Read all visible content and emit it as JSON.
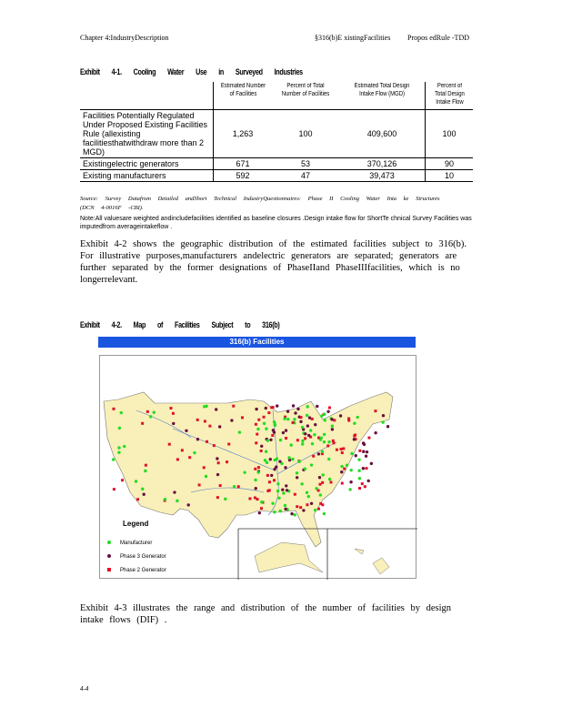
{
  "header": {
    "left": "Chapter 4:IndustryDescription",
    "right_section": "§316(b)E xistingFacilities",
    "right_doc": "Propos edRule -TDD"
  },
  "exhibit1": {
    "title": "Exhibit 4-1. Cooling Water Use in Surveyed Industries",
    "columns": [
      "Estimated Number of Facilities",
      "Percent of Total Number of Facilities",
      "Estimated Total Design Intake Flow (MGD)",
      "Percent of Total Design Intake Flow"
    ],
    "rows": [
      {
        "label": "Facilities Potentially Regulated Under Proposed Existing Facilities Rule (allexisting facilitiesthatwithdraw more than 2 MGD)",
        "values": [
          "1,263",
          "100",
          "409,600",
          "100"
        ]
      },
      {
        "label": "Existingelectric generators",
        "values": [
          "671",
          "53",
          "370,126",
          "90"
        ]
      },
      {
        "label": "Existing manufacturers",
        "values": [
          "592",
          "47",
          "39,473",
          "10"
        ]
      }
    ],
    "source": "Source: Survey Datafrom Detailed andShort Technical IndustryQuestionnaires: Phase II Cooling Water Inta ke Structures (DCN 4-0016F -CBI).",
    "note": "Note:All valuesare weighted andincludefacilities identified as baseline closures .Design intake flow for ShortTe chnical Survey Facilities was imputedfrom averageintakeflow ."
  },
  "paragraph1": "Exhibit 4-2 shows the geographic distribution of the estimated facilities subject to 316(b). For illustrative purposes,manufacturers andelectric generators are separated; generators are further separated by the former designations of PhaseIIand PhaseIIIfacilities, which is no longerrelevant.",
  "exhibit2": {
    "title": "Exhibit 4-2. Map of Facilities Subject to 316(b)",
    "map_title": "316(b) Facilities",
    "legend_title": "Legend",
    "legend": [
      {
        "label": "Manufacturer",
        "color": "#22dd22"
      },
      {
        "label": "Phase 3 Generator",
        "color": "#6a1040"
      },
      {
        "label": "Phase 2 Generator",
        "color": "#e0102a"
      }
    ]
  },
  "paragraph2": "Exhibit 4-3 illustrates the range and distribution of the number of facilities by design intake flows (DIF) .",
  "page_number": "4-4"
}
